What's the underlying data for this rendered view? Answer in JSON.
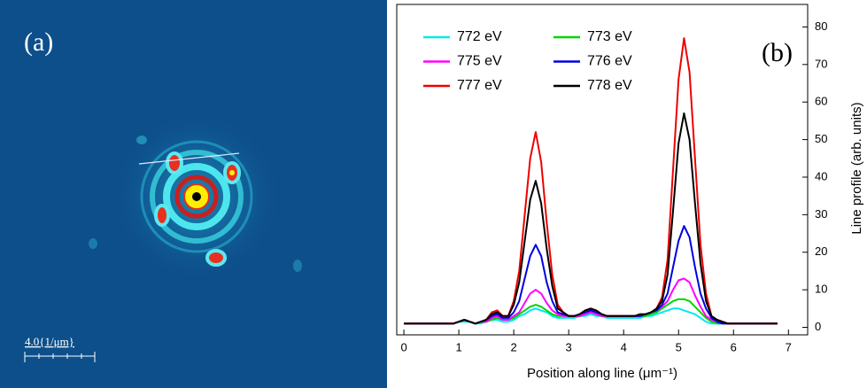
{
  "image_panel": {
    "label": "(a)",
    "scale_bar": "4.0{1/μm}"
  },
  "chart_data": {
    "type": "line",
    "label": "(b)",
    "x_label": "Position along line (μm⁻¹)",
    "y_label": "Line profile (arb. units)",
    "xlim": [
      -0.13,
      7.35
    ],
    "ylim": [
      -2,
      86
    ],
    "xticks": [
      0,
      1,
      2,
      3,
      4,
      5,
      6,
      7
    ],
    "yticks": [
      0,
      10,
      20,
      30,
      40,
      50,
      60,
      70,
      80
    ],
    "legend": "upper left",
    "x": [
      0,
      0.1,
      0.2,
      0.3,
      0.4,
      0.5,
      0.6,
      0.7,
      0.8,
      0.9,
      1,
      1.1,
      1.2,
      1.3,
      1.4,
      1.5,
      1.6,
      1.7,
      1.8,
      1.9,
      2,
      2.1,
      2.2,
      2.3,
      2.4,
      2.5,
      2.6,
      2.7,
      2.8,
      2.9,
      3,
      3.1,
      3.2,
      3.3,
      3.4,
      3.5,
      3.6,
      3.7,
      3.8,
      3.9,
      4,
      4.1,
      4.2,
      4.3,
      4.4,
      4.5,
      4.6,
      4.7,
      4.8,
      4.9,
      5,
      5.1,
      5.2,
      5.3,
      5.4,
      5.5,
      5.6,
      5.7,
      5.8,
      5.9,
      6,
      6.1,
      6.2,
      6.3,
      6.4,
      6.5,
      6.6,
      6.7,
      6.8
    ],
    "series": [
      {
        "name": "772 eV",
        "color": "#00e8f0",
        "values": [
          1,
          1,
          1,
          1,
          1,
          1,
          1,
          1,
          1,
          1,
          1.5,
          1.5,
          1.5,
          1,
          1,
          1.5,
          2,
          2,
          1.5,
          1.5,
          2,
          3,
          3.5,
          4.5,
          5,
          4.5,
          4,
          3,
          2.5,
          2.5,
          2.5,
          2.5,
          3,
          3,
          3.5,
          3,
          3,
          2.5,
          2.5,
          2.5,
          2.5,
          2.5,
          2.5,
          2.5,
          3,
          3,
          3.5,
          4,
          4.5,
          5,
          5,
          4.5,
          4,
          3.5,
          2.5,
          1.5,
          1,
          1,
          1,
          1,
          1,
          1,
          1,
          1,
          1,
          1,
          1,
          1,
          1
        ]
      },
      {
        "name": "773 eV",
        "color": "#00d400",
        "values": [
          1,
          1,
          1,
          1,
          1,
          1,
          1,
          1,
          1,
          1,
          1.5,
          2,
          1.5,
          1,
          1.5,
          1.5,
          2,
          2.5,
          2,
          2,
          2.5,
          3.5,
          4.5,
          5.5,
          6,
          5.5,
          4.5,
          3.5,
          3,
          3,
          3,
          3,
          3,
          3.5,
          4,
          3.5,
          3,
          3,
          3,
          3,
          3,
          3,
          3,
          3,
          3,
          3.5,
          4,
          5,
          6,
          7,
          7.5,
          7.5,
          7,
          5.5,
          4,
          2.5,
          1.5,
          1,
          1,
          1,
          1,
          1,
          1,
          1,
          1,
          1,
          1,
          1,
          1
        ]
      },
      {
        "name": "775 eV",
        "color": "#ff00ff",
        "values": [
          1,
          1,
          1,
          1,
          1,
          1,
          1,
          1,
          1,
          1,
          1.5,
          2,
          1.5,
          1,
          1.5,
          1.5,
          2.5,
          3,
          2,
          2,
          3,
          4,
          6.5,
          9,
          10,
          9,
          6.5,
          4.5,
          3.5,
          3,
          3,
          3,
          3,
          3.5,
          4,
          3.5,
          3,
          3,
          3,
          3,
          3,
          3,
          3,
          3,
          3.5,
          4,
          4.5,
          5.5,
          7,
          10,
          12.5,
          13,
          12,
          8.5,
          5.5,
          3,
          2,
          1.5,
          1,
          1,
          1,
          1,
          1,
          1,
          1,
          1,
          1,
          1,
          1
        ]
      },
      {
        "name": "776 eV",
        "color": "#0000e0",
        "values": [
          1,
          1,
          1,
          1,
          1,
          1,
          1,
          1,
          1,
          1,
          1.5,
          2,
          1.5,
          1,
          1.5,
          2,
          3,
          3.5,
          2.5,
          2.5,
          4,
          7,
          13,
          19,
          22,
          19,
          12,
          7,
          4,
          3.5,
          3,
          3,
          3.5,
          4,
          4.5,
          4,
          3.5,
          3,
          3,
          3,
          3,
          3,
          3,
          3,
          3.5,
          4,
          4.5,
          6,
          9,
          16,
          23,
          27,
          24,
          16,
          9,
          5,
          2.5,
          1.5,
          1,
          1,
          1,
          1,
          1,
          1,
          1,
          1,
          1,
          1,
          1
        ]
      },
      {
        "name": "777 eV",
        "color": "#ee0000",
        "values": [
          1,
          1,
          1,
          1,
          1,
          1,
          1,
          1,
          1,
          1,
          1.5,
          2,
          1.5,
          1,
          1.5,
          2,
          4,
          4.5,
          3,
          3,
          7,
          15,
          30,
          45,
          52,
          44,
          28,
          14,
          6,
          4,
          3,
          3,
          3.5,
          4.5,
          5,
          4.5,
          3.5,
          3,
          3,
          3,
          3,
          3,
          3,
          3.5,
          3.5,
          4,
          5,
          8,
          18,
          42,
          66,
          77,
          68,
          45,
          22,
          9,
          3,
          2,
          1.5,
          1,
          1,
          1,
          1,
          1,
          1,
          1,
          1,
          1,
          1
        ]
      },
      {
        "name": "778 eV",
        "color": "#000000",
        "values": [
          1,
          1,
          1,
          1,
          1,
          1,
          1,
          1,
          1,
          1,
          1.5,
          2,
          1.5,
          1,
          1.5,
          2,
          3.5,
          4,
          3,
          3,
          6,
          12,
          23,
          34,
          39,
          33,
          21,
          11,
          5,
          4,
          3,
          3,
          3.5,
          4.5,
          5,
          4.5,
          3.5,
          3,
          3,
          3,
          3,
          3,
          3,
          3.5,
          3.5,
          4,
          5,
          7,
          14,
          31,
          49,
          57,
          50,
          33,
          17,
          7,
          3,
          2,
          1.5,
          1,
          1,
          1,
          1,
          1,
          1,
          1,
          1,
          1,
          1
        ]
      }
    ]
  }
}
